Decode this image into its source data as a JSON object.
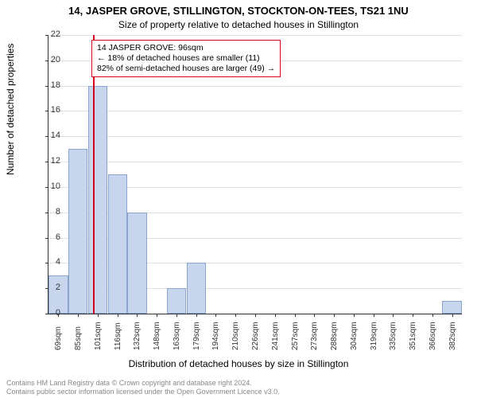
{
  "title_line1": "14, JASPER GROVE, STILLINGTON, STOCKTON-ON-TEES, TS21 1NU",
  "title_line2": "Size of property relative to detached houses in Stillington",
  "ylabel": "Number of detached properties",
  "xlabel": "Distribution of detached houses by size in Stillington",
  "chart": {
    "type": "histogram",
    "background_color": "#ffffff",
    "grid_color": "#e0e0e0",
    "axis_color": "#333333",
    "bar_fill": "#c8d6ed",
    "bar_border": "#8aa3cf",
    "marker_color": "#d9001b",
    "annotation_border": "#d9001b",
    "ylim": [
      0,
      22
    ],
    "ytick_step": 2,
    "x_categories": [
      "69sqm",
      "85sqm",
      "101sqm",
      "116sqm",
      "132sqm",
      "148sqm",
      "163sqm",
      "179sqm",
      "194sqm",
      "210sqm",
      "226sqm",
      "241sqm",
      "257sqm",
      "273sqm",
      "288sqm",
      "304sqm",
      "319sqm",
      "335sqm",
      "351sqm",
      "366sqm",
      "382sqm"
    ],
    "values": [
      3,
      13,
      18,
      11,
      8,
      0,
      2,
      4,
      0,
      0,
      0,
      0,
      0,
      0,
      0,
      0,
      0,
      0,
      0,
      0,
      1
    ],
    "marker_x_category_index": 1.78,
    "label_fontsize": 12,
    "tick_fontsize": 11,
    "xtick_fontsize": 10
  },
  "annotation": {
    "line1": "14 JASPER GROVE: 96sqm",
    "line2": "← 18% of detached houses are smaller (11)",
    "line3": "82% of semi-detached houses are larger (49) →"
  },
  "footer": {
    "line1": "Contains HM Land Registry data © Crown copyright and database right 2024.",
    "line2": "Contains public sector information licensed under the Open Government Licence v3.0."
  }
}
